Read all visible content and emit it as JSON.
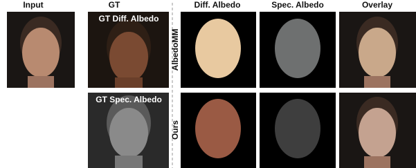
{
  "header": {
    "columns": [
      "Input",
      "GT",
      "Diff. Albedo",
      "Spec. Albedo",
      "Overlay"
    ]
  },
  "gt_labels": [
    "GT Diff. Albedo",
    "GT Spec. Albedo"
  ],
  "row_labels": [
    "AlbedoMM",
    "Ours"
  ]
}
